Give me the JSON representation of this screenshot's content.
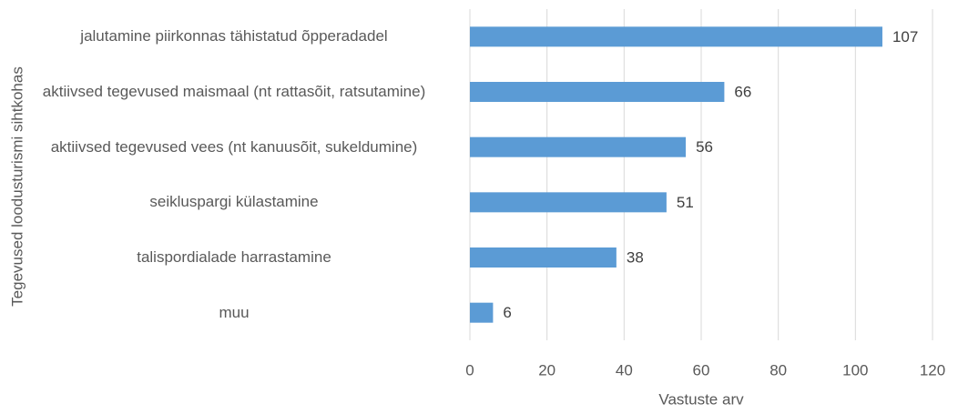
{
  "chart_data": {
    "type": "bar",
    "orientation": "horizontal",
    "categories": [
      "jalutamine piirkonnas tähistatud õpperadadel",
      "aktiivsed tegevused maismaal (nt rattasõit, ratsutamine)",
      "aktiivsed tegevused vees (nt kanuusõit, sukeldumine)",
      "seikluspargi külastamine",
      "talispordialade harrastamine",
      "muu"
    ],
    "values": [
      107,
      66,
      56,
      51,
      38,
      6
    ],
    "color": "#5b9bd5",
    "xlabel": "Vastuste arv",
    "ylabel": "Tegevused loodusturismi sihtkohas",
    "xlim": [
      0,
      120
    ],
    "xticks": [
      0,
      20,
      40,
      60,
      80,
      100,
      120
    ],
    "grid": true
  }
}
